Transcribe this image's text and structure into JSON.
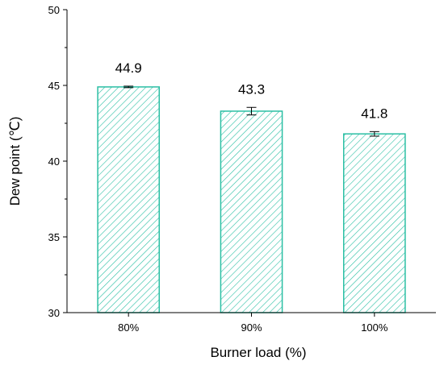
{
  "chart_data": {
    "type": "bar",
    "title": "",
    "xlabel": "Burner load (%)",
    "ylabel": "Dew point (℃)",
    "categories": [
      "80%",
      "90%",
      "100%"
    ],
    "values": [
      44.9,
      43.3,
      41.8
    ],
    "data_labels": [
      "44.9",
      "43.3",
      "41.8"
    ],
    "error": [
      0.05,
      0.25,
      0.15
    ],
    "ylim": [
      30,
      50
    ],
    "yticks": [
      30,
      35,
      40,
      45,
      50
    ],
    "ytick_labels": [
      "30",
      "35",
      "40",
      "45",
      "50"
    ],
    "grid": false,
    "legend": "none",
    "bar_color": "#2bbfa4",
    "bar_fill": "hatched"
  }
}
